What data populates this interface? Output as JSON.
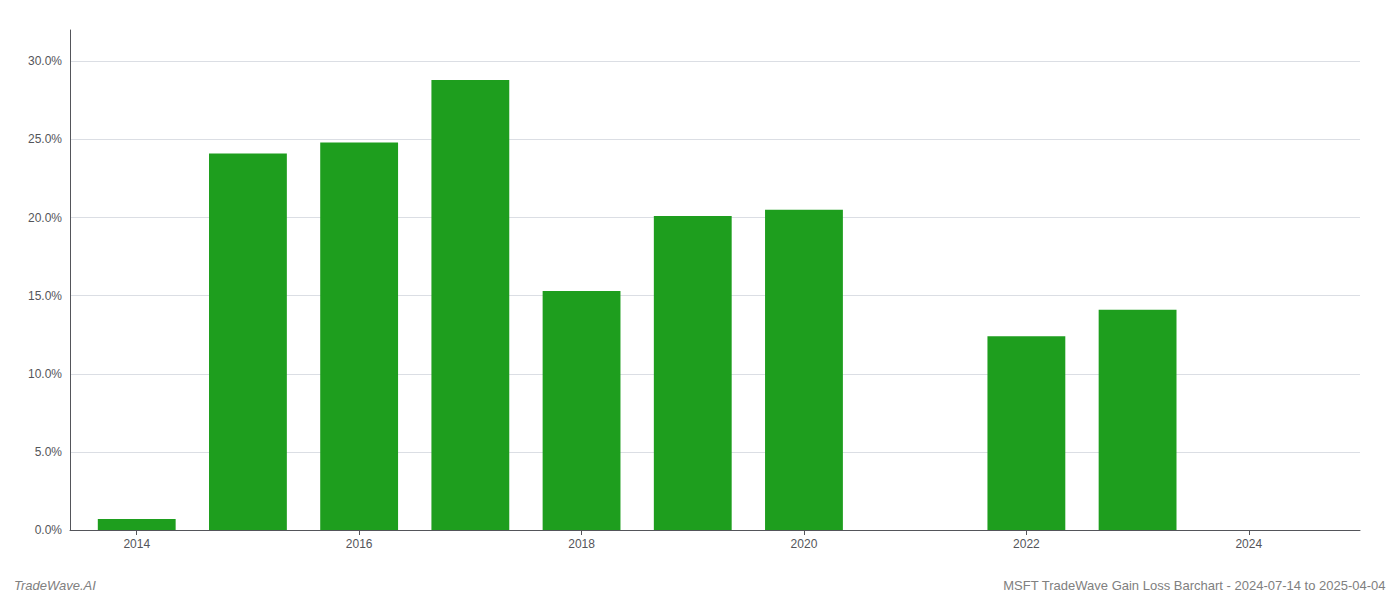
{
  "chart_data": {
    "type": "bar",
    "x": [
      2014,
      2015,
      2016,
      2017,
      2018,
      2019,
      2020,
      2022,
      2023
    ],
    "values": [
      0.007,
      0.241,
      0.248,
      0.288,
      0.153,
      0.201,
      0.205,
      0.124,
      0.141
    ],
    "color": "#1e9e1e",
    "xlim": [
      2013.4,
      2025.0
    ],
    "xticks": [
      2014,
      2016,
      2018,
      2020,
      2022,
      2024
    ],
    "ylim": [
      0,
      0.32
    ],
    "yticks": [
      {
        "value": 0.0,
        "label": "0.0%"
      },
      {
        "value": 0.05,
        "label": "5.0%"
      },
      {
        "value": 0.1,
        "label": "10.0%"
      },
      {
        "value": 0.15,
        "label": "15.0%"
      },
      {
        "value": 0.2,
        "label": "20.0%"
      },
      {
        "value": 0.25,
        "label": "25.0%"
      },
      {
        "value": 0.3,
        "label": "30.0%"
      }
    ],
    "grid": true,
    "annotations": [
      "TradeWave.AI",
      "MSFT TradeWave Gain Loss Barchart - 2024-07-14 to 2025-04-04"
    ]
  }
}
